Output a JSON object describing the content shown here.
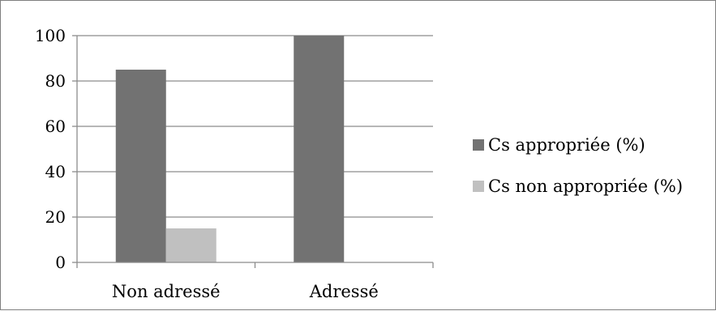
{
  "chart_data": {
    "type": "bar",
    "title": "",
    "xlabel": "",
    "ylabel": "",
    "categories": [
      "Non adressé",
      "Adressé"
    ],
    "series": [
      {
        "name": "Cs appropriée (%)",
        "values": [
          85,
          100
        ],
        "color": "#727272"
      },
      {
        "name": "Cs non appropriée (%)",
        "values": [
          15,
          0
        ],
        "color": "#c0c0c0"
      }
    ],
    "ylim": [
      0,
      100
    ],
    "yticks": [
      0,
      20,
      40,
      60,
      80,
      100
    ],
    "grid": true,
    "legend_position": "right"
  }
}
